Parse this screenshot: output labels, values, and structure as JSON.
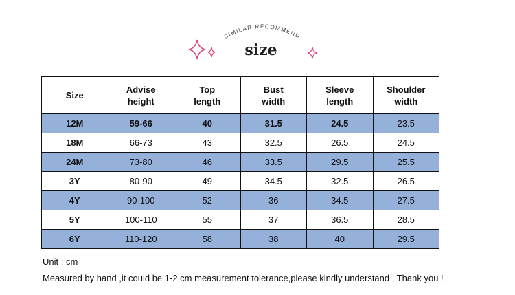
{
  "header": {
    "subtitle": "SIMILAR RECOMMEND",
    "title": "size"
  },
  "table": {
    "columns": [
      "Size",
      "Advise height",
      "Top length",
      "Bust width",
      "Sleeve length",
      "Shoulder width"
    ],
    "rows": [
      [
        "12M",
        "59-66",
        "40",
        "31.5",
        "24.5",
        "23.5"
      ],
      [
        "18M",
        "66-73",
        "43",
        "32.5",
        "26.5",
        "24.5"
      ],
      [
        "24M",
        "73-80",
        "46",
        "33.5",
        "29.5",
        "25.5"
      ],
      [
        "3Y",
        "80-90",
        "49",
        "34.5",
        "32.5",
        "26.5"
      ],
      [
        "4Y",
        "90-100",
        "52",
        "36",
        "34.5",
        "27.5"
      ],
      [
        "5Y",
        "100-110",
        "55",
        "37",
        "36.5",
        "28.5"
      ],
      [
        "6Y",
        "110-120",
        "58",
        "38",
        "40",
        "29.5"
      ]
    ]
  },
  "notes": {
    "unit": "Unit : cm",
    "disclaimer": "Measured by hand ,it could be 1-2 cm measurement tolerance,please kindly understand , Thank you !"
  }
}
